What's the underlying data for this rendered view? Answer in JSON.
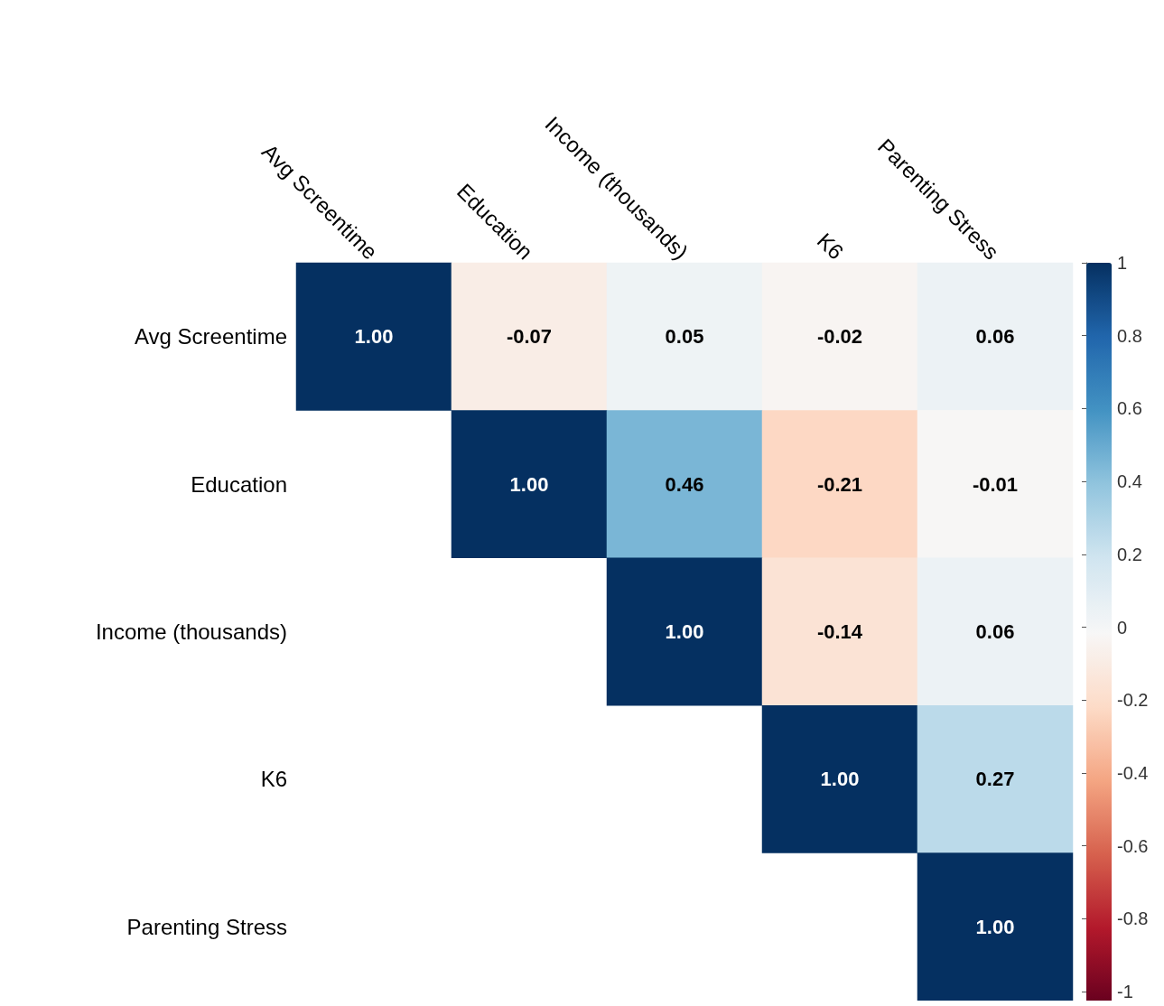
{
  "chart_data": {
    "type": "heatmap",
    "categories": [
      "Avg Screentime",
      "Education",
      "Income (thousands)",
      "K6",
      "Parenting Stress"
    ],
    "y_categories": [
      "Avg Screentime",
      "Education",
      "Income (thousands)",
      "K6",
      "Parenting Stress"
    ],
    "cells": [
      [
        1,
        -0.07,
        0.05,
        -0.02,
        0.06
      ],
      [
        null,
        1,
        0.46,
        -0.21,
        -0.01
      ],
      [
        null,
        null,
        1,
        -0.14,
        0.06
      ],
      [
        null,
        null,
        null,
        1,
        0.27
      ],
      [
        null,
        null,
        null,
        null,
        1
      ]
    ],
    "cell_labels": [
      [
        "1.00",
        "-0.07",
        "0.05",
        "-0.02",
        "0.06"
      ],
      [
        null,
        "1.00",
        "0.46",
        "-0.21",
        "-0.01"
      ],
      [
        null,
        null,
        "1.00",
        "-0.14",
        "0.06"
      ],
      [
        null,
        null,
        null,
        "1.00",
        "0.27"
      ],
      [
        null,
        null,
        null,
        null,
        "1.00"
      ]
    ],
    "clim": [
      -1,
      1
    ],
    "cticks": [
      1,
      0.8,
      0.6,
      0.4,
      0.2,
      0,
      -0.2,
      -0.4,
      -0.6,
      -0.8,
      -1
    ]
  }
}
